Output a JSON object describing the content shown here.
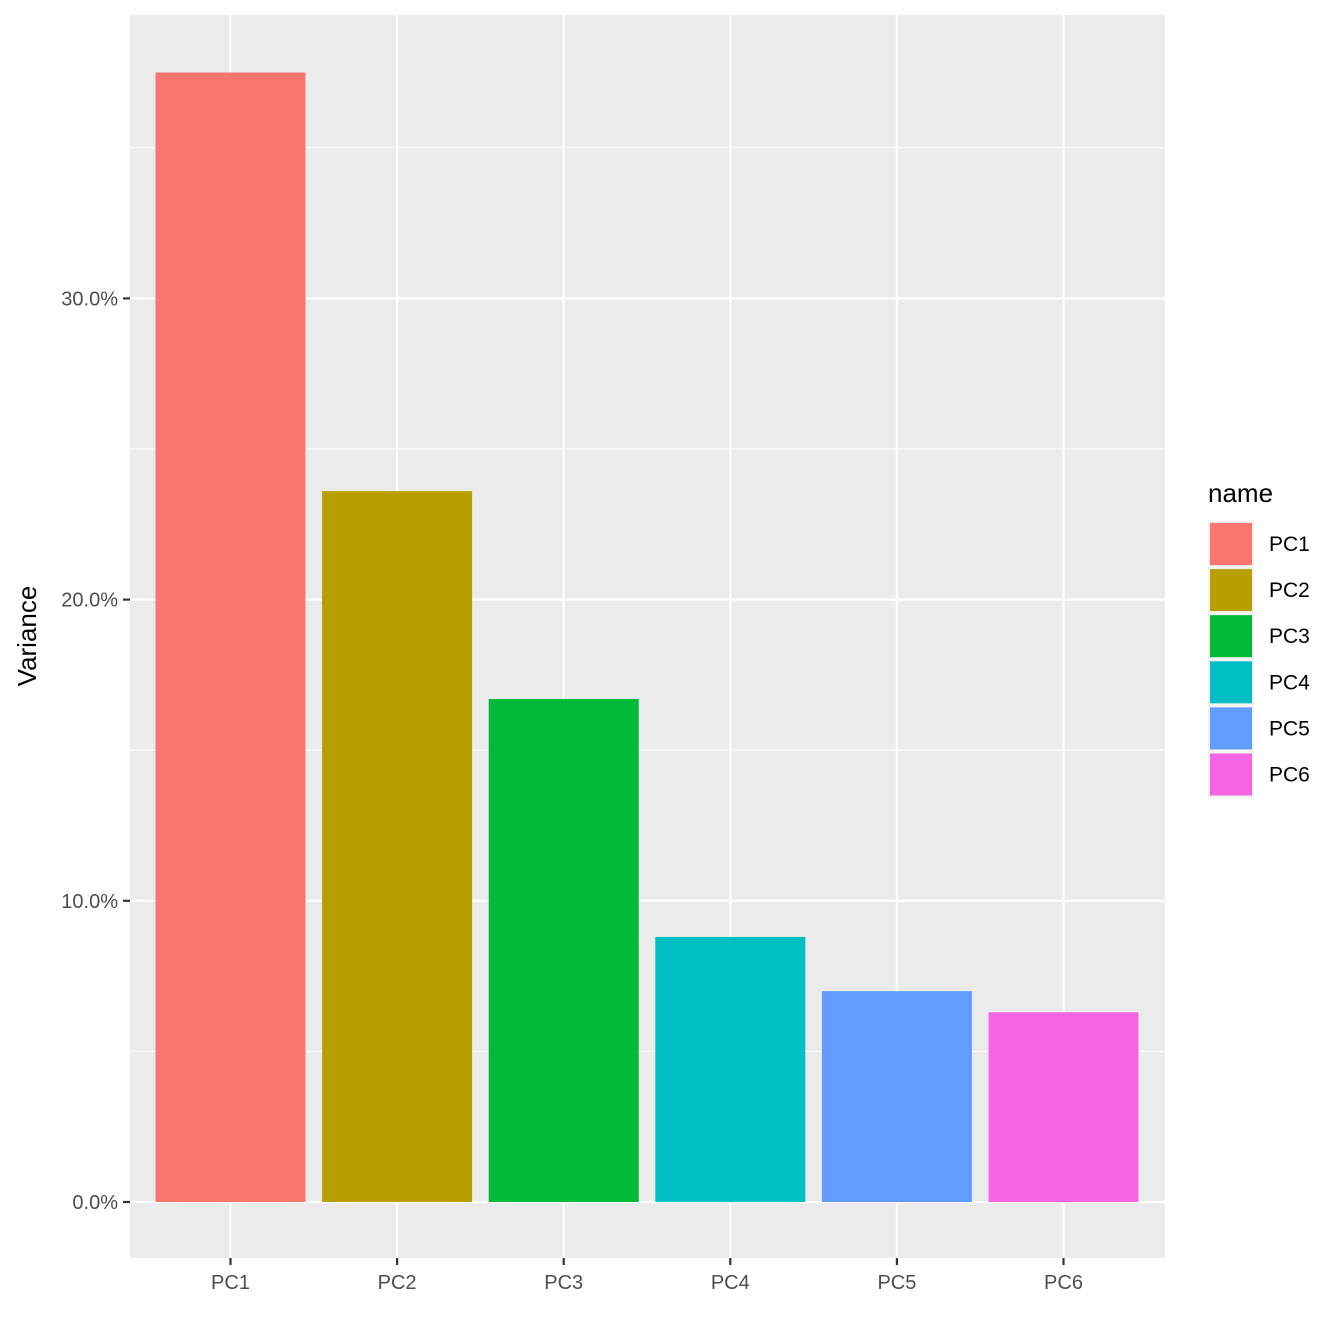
{
  "chart_data": {
    "type": "bar",
    "title": "",
    "xlabel": "",
    "ylabel": "Variance",
    "categories": [
      "PC1",
      "PC2",
      "PC3",
      "PC4",
      "PC5",
      "PC6"
    ],
    "values": [
      37.5,
      23.6,
      16.7,
      8.8,
      7.0,
      6.3
    ],
    "value_unit": "%",
    "ylim": [
      -1.5,
      39.5
    ],
    "y_ticks": [
      0,
      10,
      20,
      30
    ],
    "y_tick_labels": [
      "0.0%",
      "10.0%",
      "20.0%",
      "30.0%"
    ],
    "grid": true,
    "legend": {
      "title": "name",
      "position": "right",
      "entries": [
        "PC1",
        "PC2",
        "PC3",
        "PC4",
        "PC5",
        "PC6"
      ]
    },
    "colors": [
      "#F8766D",
      "#B79F00",
      "#00BA38",
      "#00BFC4",
      "#619CFF",
      "#F564E3"
    ],
    "panel_background": "#EBEBEB",
    "grid_color": "#FFFFFF"
  }
}
